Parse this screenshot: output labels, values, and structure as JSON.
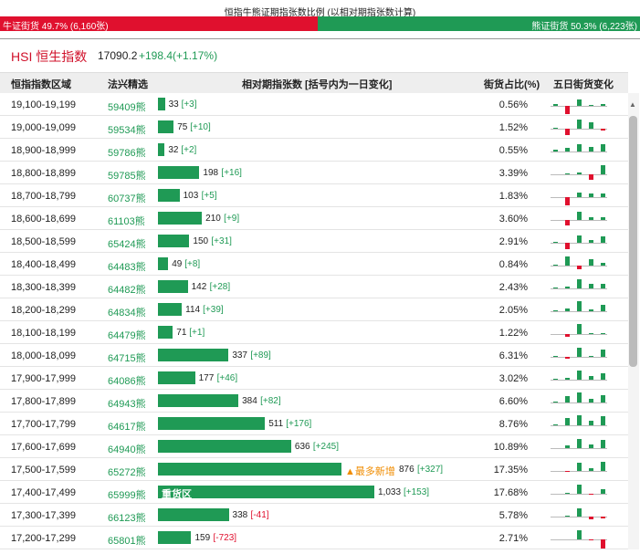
{
  "header": {
    "title": "恒指牛熊证期指张数比例 (以相对期指张数计算)",
    "bull_label": "牛证街货 49.7% (6,160张)",
    "bull_ratio": 49.7,
    "bear_label": "熊证街货 50.3% (6,223张)",
    "bear_ratio": 50.3
  },
  "index": {
    "code": "HSI",
    "name": "恒生指数",
    "price": "17090.2",
    "change": "+198.4(+1.17%)"
  },
  "table": {
    "columns": [
      "恒指指数区域",
      "法兴精选",
      "相对期指张数 [括号内为一日变化]",
      "街货占比(%)",
      "五日街货变化"
    ],
    "rows": [
      {
        "range": "19,100-19,199",
        "code": "59409熊",
        "count": 33,
        "change": "[+3]",
        "share": "0.56%",
        "trend": [
          2,
          -8,
          6,
          1,
          2
        ]
      },
      {
        "range": "19,000-19,099",
        "code": "59534熊",
        "count": 75,
        "change": "[+10]",
        "share": "1.52%",
        "trend": [
          1,
          -6,
          9,
          6,
          -2
        ]
      },
      {
        "range": "18,900-18,999",
        "code": "59786熊",
        "count": 32,
        "change": "[+2]",
        "share": "0.55%",
        "trend": [
          2,
          4,
          7,
          5,
          7
        ]
      },
      {
        "range": "18,800-18,899",
        "code": "59785熊",
        "count": 198,
        "change": "[+16]",
        "share": "3.39%",
        "trend": [
          0,
          1,
          2,
          -5,
          9
        ]
      },
      {
        "range": "18,700-18,799",
        "code": "60737熊",
        "count": 103,
        "change": "[+5]",
        "share": "1.83%",
        "trend": [
          0,
          -8,
          5,
          4,
          4
        ]
      },
      {
        "range": "18,600-18,699",
        "code": "61103熊",
        "count": 210,
        "change": "[+9]",
        "share": "3.60%",
        "trend": [
          0,
          -5,
          8,
          3,
          3
        ]
      },
      {
        "range": "18,500-18,599",
        "code": "65424熊",
        "count": 150,
        "change": "[+31]",
        "share": "2.91%",
        "trend": [
          1,
          -6,
          7,
          3,
          6
        ]
      },
      {
        "range": "18,400-18,499",
        "code": "64483熊",
        "count": 49,
        "change": "[+8]",
        "share": "0.84%",
        "trend": [
          1,
          9,
          -4,
          6,
          3
        ]
      },
      {
        "range": "18,300-18,399",
        "code": "64482熊",
        "count": 142,
        "change": "[+28]",
        "share": "2.43%",
        "trend": [
          1,
          2,
          9,
          5,
          5
        ]
      },
      {
        "range": "18,200-18,299",
        "code": "64834熊",
        "count": 114,
        "change": "[+39]",
        "share": "2.05%",
        "trend": [
          1,
          3,
          10,
          2,
          6
        ]
      },
      {
        "range": "18,100-18,199",
        "code": "64479熊",
        "count": 71,
        "change": "[+1]",
        "share": "1.22%",
        "trend": [
          0,
          -3,
          10,
          1,
          1
        ]
      },
      {
        "range": "18,000-18,099",
        "code": "64715熊",
        "count": 337,
        "change": "[+89]",
        "share": "6.31%",
        "trend": [
          1,
          -2,
          9,
          1,
          7
        ]
      },
      {
        "range": "17,900-17,999",
        "code": "64086熊",
        "count": 177,
        "change": "[+46]",
        "share": "3.02%",
        "trend": [
          1,
          2,
          9,
          4,
          6
        ]
      },
      {
        "range": "17,800-17,899",
        "code": "64943熊",
        "count": 384,
        "change": "[+82]",
        "share": "6.60%",
        "trend": [
          1,
          6,
          10,
          4,
          7
        ]
      },
      {
        "range": "17,700-17,799",
        "code": "64617熊",
        "count": 511,
        "change": "[+176]",
        "share": "8.76%",
        "trend": [
          1,
          7,
          10,
          5,
          9
        ]
      },
      {
        "range": "17,600-17,699",
        "code": "64940熊",
        "count": 636,
        "change": "[+245]",
        "share": "10.89%",
        "trend": [
          0,
          3,
          9,
          4,
          8
        ]
      },
      {
        "range": "17,500-17,599",
        "code": "65272熊",
        "count": 876,
        "change": "[+327]",
        "share": "17.35%",
        "note": "▲最多新增",
        "trend": [
          0,
          -1,
          8,
          3,
          9
        ]
      },
      {
        "range": "17,400-17,499",
        "code": "65999熊",
        "count": {
          "value": 1033,
          "label": "1,033"
        },
        "change": "[+153]",
        "share": "17.68%",
        "inner_note": "重货区",
        "trend": [
          0,
          1,
          9,
          -1,
          5
        ]
      },
      {
        "range": "17,300-17,399",
        "code": "66123熊",
        "count": 338,
        "change": "[-41]",
        "share": "5.78%",
        "trend": [
          0,
          1,
          8,
          -3,
          -2
        ]
      },
      {
        "range": "17,200-17,299",
        "code": "65801熊",
        "count": 159,
        "change": "[-723]",
        "share": "2.71%",
        "trend": [
          0,
          0,
          9,
          -1,
          -9
        ]
      }
    ]
  }
}
